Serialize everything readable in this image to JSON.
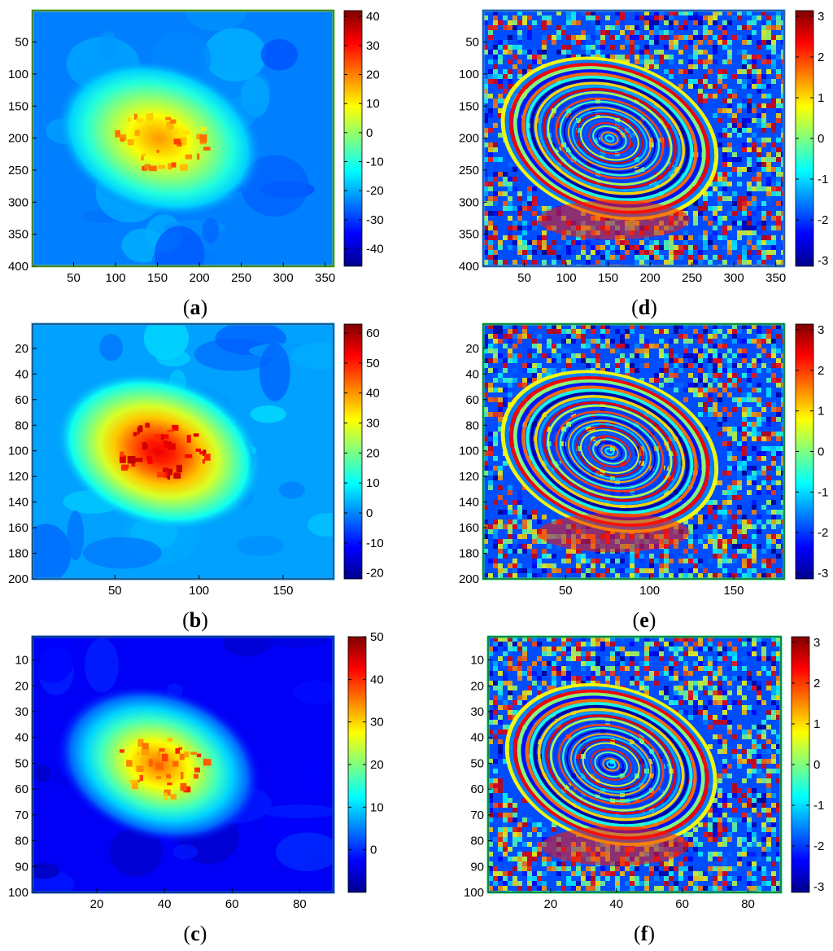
{
  "chart_data": [
    {
      "label": "a",
      "type": "heatmap",
      "kind": "deformation",
      "x_ticks": [
        50,
        100,
        150,
        200,
        250,
        300,
        350
      ],
      "xlim": [
        1,
        360
      ],
      "y_ticks": [
        50,
        100,
        150,
        200,
        250,
        300,
        350,
        400
      ],
      "ylim": [
        1,
        400
      ],
      "colorbar": {
        "ticks": [
          40,
          30,
          20,
          10,
          0,
          -10,
          -20,
          -30,
          -40
        ],
        "range": [
          -46,
          42
        ]
      },
      "frame_color": "#7ed957",
      "bowl": {
        "peak": 18,
        "background": -24
      }
    },
    {
      "label": "b",
      "type": "heatmap",
      "kind": "deformation",
      "x_ticks": [
        50,
        100,
        150
      ],
      "xlim": [
        1,
        180
      ],
      "y_ticks": [
        20,
        40,
        60,
        80,
        100,
        120,
        140,
        160,
        180,
        200
      ],
      "ylim": [
        1,
        200
      ],
      "colorbar": {
        "ticks": [
          60,
          50,
          40,
          30,
          20,
          10,
          0,
          -10,
          -20
        ],
        "range": [
          -22,
          63
        ]
      },
      "frame_color": "#2f9be8",
      "bowl": {
        "peak": 55,
        "background": 2
      }
    },
    {
      "label": "c",
      "type": "heatmap",
      "kind": "deformation",
      "x_ticks": [
        20,
        40,
        60,
        80
      ],
      "xlim": [
        1,
        90
      ],
      "y_ticks": [
        10,
        20,
        30,
        40,
        50,
        60,
        70,
        80,
        90,
        100
      ],
      "ylim": [
        1,
        100
      ],
      "colorbar": {
        "ticks": [
          50,
          40,
          30,
          20,
          10,
          0
        ],
        "range": [
          -10,
          50
        ]
      },
      "frame_color": "#1a5fe0",
      "bowl": {
        "peak": 36,
        "background": -3
      }
    },
    {
      "label": "d",
      "type": "heatmap",
      "kind": "phase",
      "x_ticks": [
        50,
        100,
        150,
        200,
        250,
        300,
        350
      ],
      "xlim": [
        1,
        360
      ],
      "y_ticks": [
        50,
        100,
        150,
        200,
        250,
        300,
        350,
        400
      ],
      "ylim": [
        1,
        400
      ],
      "colorbar": {
        "ticks": [
          3,
          2,
          1,
          0,
          -1,
          -2,
          -3
        ],
        "range": [
          -3.14,
          3.14
        ]
      },
      "frame_color": "#4aa0ff"
    },
    {
      "label": "e",
      "type": "heatmap",
      "kind": "phase",
      "x_ticks": [
        50,
        100,
        150
      ],
      "xlim": [
        1,
        180
      ],
      "y_ticks": [
        20,
        40,
        60,
        80,
        100,
        120,
        140,
        160,
        180,
        200
      ],
      "ylim": [
        1,
        200
      ],
      "colorbar": {
        "ticks": [
          3,
          2,
          1,
          0,
          -1,
          -2,
          -3
        ],
        "range": [
          -3.14,
          3.14
        ]
      },
      "frame_color": "#2fe07a"
    },
    {
      "label": "f",
      "type": "heatmap",
      "kind": "phase",
      "x_ticks": [
        20,
        40,
        60,
        80
      ],
      "xlim": [
        1,
        90
      ],
      "y_ticks": [
        10,
        20,
        30,
        40,
        50,
        60,
        70,
        80,
        90,
        100
      ],
      "ylim": [
        1,
        100
      ],
      "colorbar": {
        "ticks": [
          3,
          2,
          1,
          0,
          -1,
          -2,
          -3
        ],
        "range": [
          -3.14,
          3.14
        ]
      },
      "frame_color": "#22e07e"
    }
  ]
}
